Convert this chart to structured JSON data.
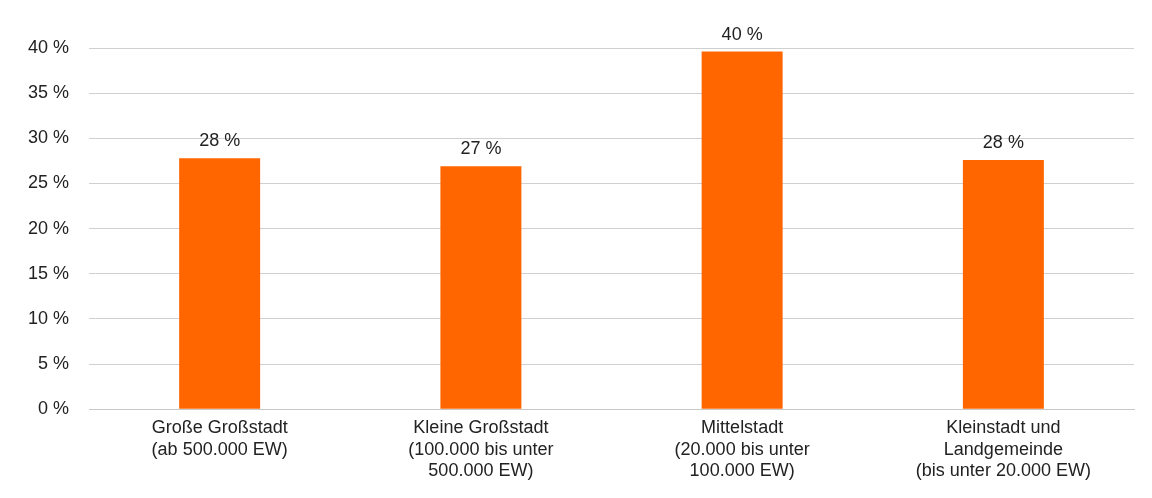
{
  "chart_data": {
    "type": "bar",
    "categories": [
      "Große Großstadt (ab 500.000 EW)",
      "Kleine Großstadt (100.000 bis unter 500.000 EW)",
      "Mittelstadt (20.000 bis unter 100.000 EW)",
      "Kleinstadt und Landgemeinde (bis unter 20.000 EW)"
    ],
    "values": [
      27.8,
      26.9,
      39.6,
      27.6
    ],
    "value_labels": [
      "28 %",
      "27 %",
      "40 %",
      "28 %"
    ],
    "color": "#ff6600",
    "ylim": [
      0,
      40
    ],
    "yticks": [
      {
        "value": 0,
        "label": "0 %"
      },
      {
        "value": 5,
        "label": "5 %"
      },
      {
        "value": 10,
        "label": "10 %"
      },
      {
        "value": 15,
        "label": "15 %"
      },
      {
        "value": 20,
        "label": "20 %"
      },
      {
        "value": 25,
        "label": "25 %"
      },
      {
        "value": 30,
        "label": "30 %"
      },
      {
        "value": 35,
        "label": "35 %"
      },
      {
        "value": 40,
        "label": "40 %"
      }
    ],
    "grid": "y",
    "legend": false
  }
}
